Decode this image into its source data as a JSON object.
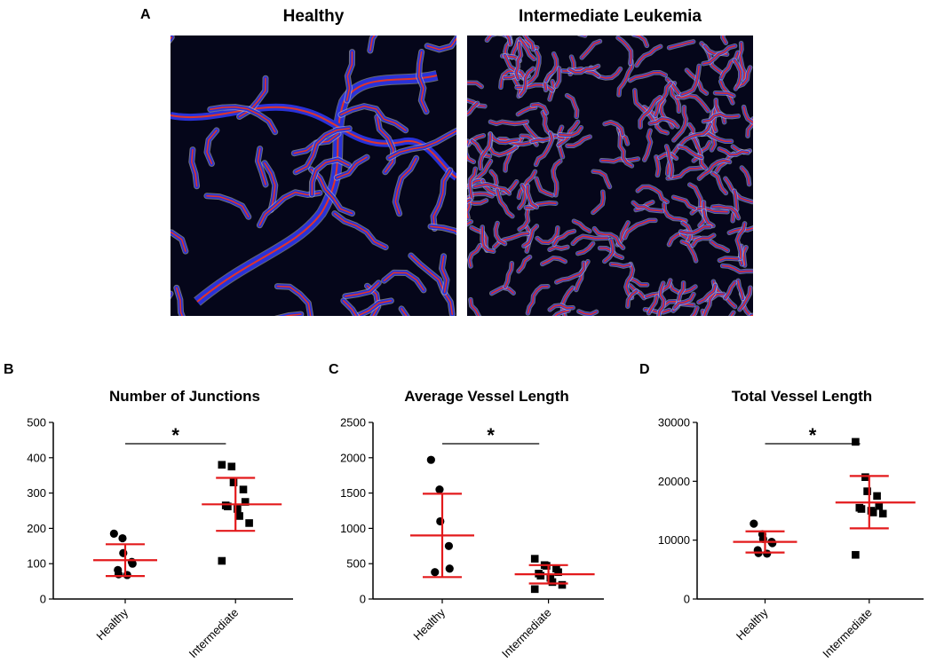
{
  "panel_letters": {
    "a": "A",
    "b": "B",
    "c": "C",
    "d": "D"
  },
  "micrographs": {
    "left_title": "Healthy",
    "right_title": "Intermediate Leukemia",
    "colors": {
      "background": "#05061a",
      "vessel_core": "#2a32d8",
      "skeleton": "#e0342a",
      "outline": "#c8c8c8"
    }
  },
  "colors": {
    "points": "#000000",
    "mean_bar": "#e31a1c",
    "axis": "#000000"
  },
  "chart_data": [
    {
      "type": "scatter",
      "title": "Number of Junctions",
      "xlabel": "",
      "ylabel": "",
      "categories": [
        "Healthy",
        "Intermediate"
      ],
      "ylim": [
        0,
        500
      ],
      "yticks": [
        0,
        100,
        200,
        300,
        400,
        500
      ],
      "significance": "*",
      "series": [
        {
          "category": "Healthy",
          "marker": "circle",
          "values": [
            185,
            172,
            130,
            105,
            100,
            82,
            70,
            68
          ],
          "mean": 110,
          "sd_low": 65,
          "sd_high": 155
        },
        {
          "category": "Intermediate",
          "marker": "square",
          "values": [
            380,
            375,
            330,
            310,
            275,
            265,
            262,
            255,
            235,
            215,
            108
          ],
          "mean": 268,
          "sd_low": 193,
          "sd_high": 343
        }
      ]
    },
    {
      "type": "scatter",
      "title": "Average Vessel Length",
      "xlabel": "",
      "ylabel": "",
      "categories": [
        "Healthy",
        "Intermediate"
      ],
      "ylim": [
        0,
        2500
      ],
      "yticks": [
        0,
        500,
        1000,
        1500,
        2000,
        2500
      ],
      "significance": "*",
      "series": [
        {
          "category": "Healthy",
          "marker": "circle",
          "values": [
            1970,
            1550,
            1100,
            750,
            430,
            380
          ],
          "mean": 900,
          "sd_low": 310,
          "sd_high": 1490
        },
        {
          "category": "Intermediate",
          "marker": "square",
          "values": [
            570,
            480,
            470,
            430,
            380,
            360,
            330,
            300,
            240,
            200,
            140
          ],
          "mean": 350,
          "sd_low": 220,
          "sd_high": 480
        }
      ]
    },
    {
      "type": "scatter",
      "title": "Total Vessel Length",
      "xlabel": "",
      "ylabel": "",
      "categories": [
        "Healthy",
        "Intermediate"
      ],
      "ylim": [
        0,
        30000
      ],
      "yticks": [
        0,
        10000,
        20000,
        30000
      ],
      "significance": "*",
      "series": [
        {
          "category": "Healthy",
          "marker": "circle",
          "values": [
            12800,
            11000,
            10200,
            9700,
            9500,
            8300,
            7800,
            7700
          ],
          "mean": 9700,
          "sd_low": 7900,
          "sd_high": 11500
        },
        {
          "category": "Intermediate",
          "marker": "square",
          "values": [
            26700,
            20700,
            18300,
            17500,
            15800,
            15500,
            15300,
            15000,
            14700,
            14500,
            7500
          ],
          "mean": 16400,
          "sd_low": 12000,
          "sd_high": 20900
        }
      ]
    }
  ]
}
